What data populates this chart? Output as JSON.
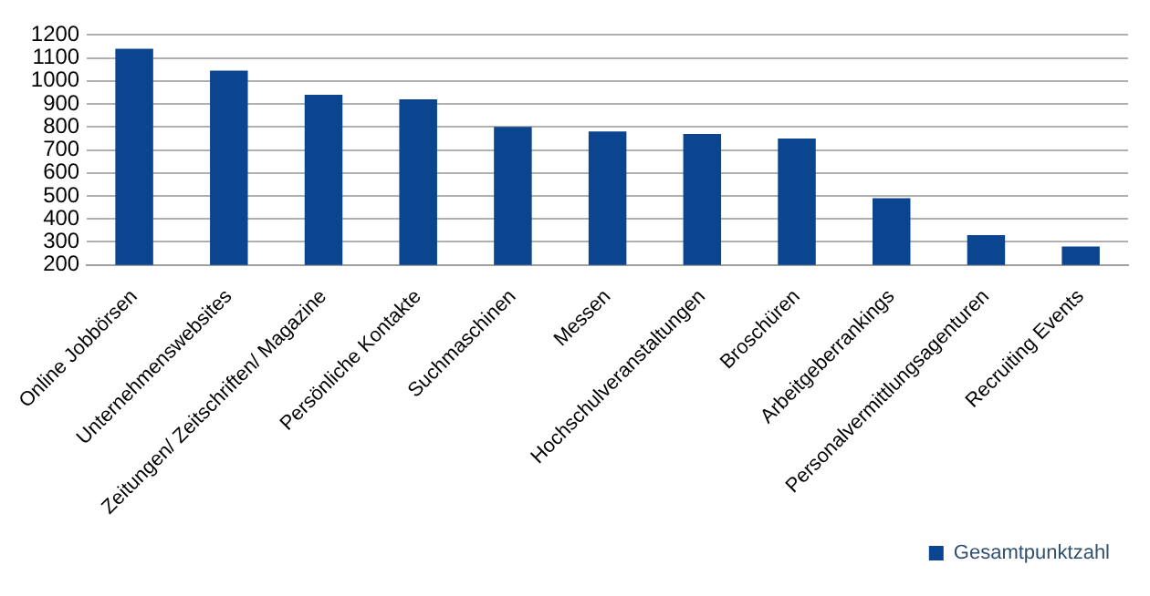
{
  "chart_data": {
    "type": "bar",
    "categories": [
      "Online Jobbörsen",
      "Unternehmenswebsites",
      "Zeitungen/ Zeitschriften/ Magazine",
      "Persönliche Kontakte",
      "Suchmaschinen",
      "Messen",
      "Hochschulveranstaltungen",
      "Broschüren",
      "Arbeitgeberrankings",
      "Personalvermittlungsagenturen",
      "Recruiting Events"
    ],
    "series": [
      {
        "name": "Gesamtpunktzahl",
        "color": "#0b4590",
        "values": [
          1140,
          1045,
          940,
          920,
          800,
          780,
          770,
          750,
          490,
          330,
          280
        ]
      }
    ],
    "ylim": [
      200,
      1200
    ],
    "yticks": [
      200,
      300,
      400,
      500,
      600,
      700,
      800,
      900,
      1000,
      1100,
      1200
    ],
    "grid": "y",
    "legend": "bottom right"
  }
}
